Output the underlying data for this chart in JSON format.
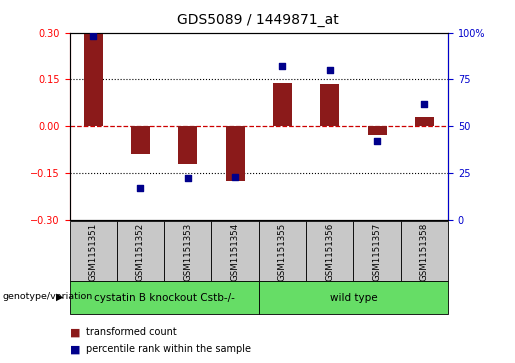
{
  "title": "GDS5089 / 1449871_at",
  "samples": [
    "GSM1151351",
    "GSM1151352",
    "GSM1151353",
    "GSM1151354",
    "GSM1151355",
    "GSM1151356",
    "GSM1151357",
    "GSM1151358"
  ],
  "transformed_count": [
    0.3,
    -0.09,
    -0.12,
    -0.175,
    0.14,
    0.135,
    -0.03,
    0.03
  ],
  "percentile_rank": [
    98,
    17,
    22,
    23,
    82,
    80,
    42,
    62
  ],
  "bar_color": "#8B1A1A",
  "dot_color": "#00008B",
  "ylim_left": [
    -0.3,
    0.3
  ],
  "ylim_right": [
    0,
    100
  ],
  "yticks_left": [
    -0.3,
    -0.15,
    0,
    0.15,
    0.3
  ],
  "yticks_right": [
    0,
    25,
    50,
    75,
    100
  ],
  "group_spans": [
    [
      0,
      3,
      "cystatin B knockout Cstb-/-"
    ],
    [
      4,
      7,
      "wild type"
    ]
  ],
  "group_color": "#66DD66",
  "sample_box_color": "#C8C8C8",
  "legend_items": [
    {
      "label": "transformed count",
      "color": "#8B1A1A"
    },
    {
      "label": "percentile rank within the sample",
      "color": "#00008B"
    }
  ],
  "zero_line_color": "#CC0000",
  "background_color": "#FFFFFF",
  "tick_label_fontsize": 7,
  "title_fontsize": 10,
  "bar_width": 0.4
}
